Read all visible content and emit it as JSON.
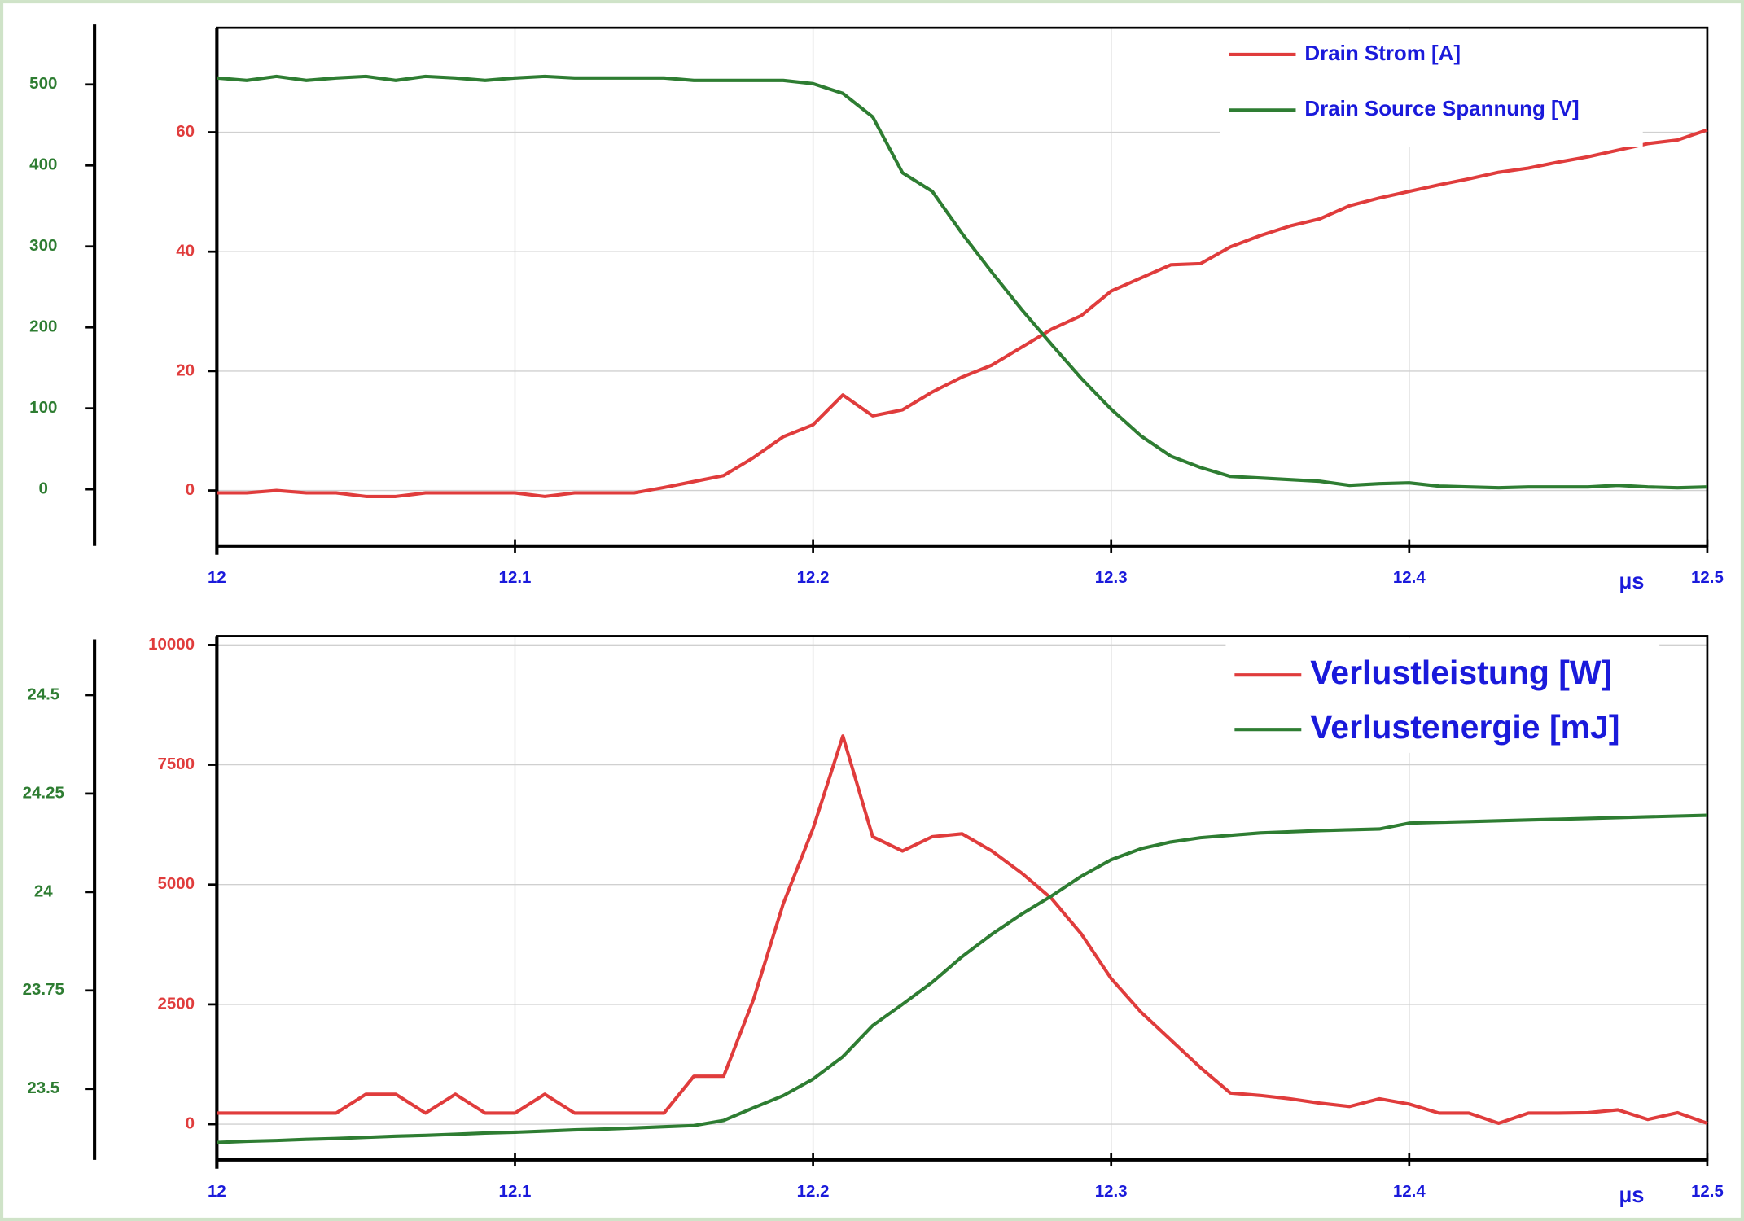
{
  "chart_data": [
    {
      "type": "line",
      "x": [
        12,
        12.01,
        12.02,
        12.03,
        12.04,
        12.05,
        12.06,
        12.07,
        12.08,
        12.09,
        12.1,
        12.11,
        12.12,
        12.13,
        12.14,
        12.15,
        12.16,
        12.17,
        12.18,
        12.19,
        12.2,
        12.21,
        12.22,
        12.23,
        12.24,
        12.25,
        12.26,
        12.27,
        12.28,
        12.29,
        12.3,
        12.31,
        12.32,
        12.33,
        12.34,
        12.35,
        12.36,
        12.37,
        12.38,
        12.39,
        12.4,
        12.41,
        12.42,
        12.43,
        12.44,
        12.45,
        12.46,
        12.47,
        12.48,
        12.49,
        12.5
      ],
      "xlim": [
        12,
        12.5
      ],
      "xticks": [
        12,
        12.1,
        12.2,
        12.3,
        12.4,
        12.5
      ],
      "x_label": "µs",
      "ylim": [
        -9.3,
        77.5
      ],
      "yticks": [
        0,
        20,
        40,
        60
      ],
      "y2lim": [
        -70,
        570
      ],
      "y2ticks": [
        0,
        100,
        200,
        300,
        400,
        500
      ],
      "grid": true,
      "legend": "upper right",
      "series": [
        {
          "name": "Drain Strom [A]",
          "color": "#e03c3c",
          "values": [
            -0.4,
            -0.4,
            0,
            -0.4,
            -0.4,
            -1,
            -1,
            -0.4,
            -0.4,
            -0.4,
            -0.4,
            -1,
            -0.4,
            -0.4,
            -0.4,
            0.5,
            1.5,
            2.5,
            5.5,
            9,
            11,
            16,
            12.5,
            13.5,
            16.5,
            19,
            21,
            24,
            27,
            29.3,
            33.4,
            35.6,
            37.8,
            38,
            40.8,
            42.7,
            44.3,
            45.5,
            47.7,
            49,
            50.1,
            51.2,
            52.2,
            53.3,
            54,
            55,
            55.9,
            57,
            58.1,
            58.7,
            60.4
          ]
        },
        {
          "name": "Drain Source Spannung [V]",
          "color": "#2e7d32",
          "axis": "y2",
          "values": [
            508,
            505,
            510,
            505,
            508,
            510,
            505,
            510,
            508,
            505,
            508,
            510,
            508,
            508,
            508,
            508,
            505,
            505,
            505,
            505,
            501,
            489,
            460,
            391,
            368,
            316,
            268,
            222,
            179,
            137,
            99,
            66,
            41,
            27,
            16,
            14,
            12,
            10,
            5,
            7,
            8,
            4,
            3,
            2,
            3,
            3,
            3,
            5,
            3,
            2,
            3
          ]
        }
      ]
    },
    {
      "type": "line",
      "x": [
        12,
        12.01,
        12.02,
        12.03,
        12.04,
        12.05,
        12.06,
        12.07,
        12.08,
        12.09,
        12.1,
        12.11,
        12.12,
        12.13,
        12.14,
        12.15,
        12.16,
        12.17,
        12.18,
        12.19,
        12.2,
        12.21,
        12.22,
        12.23,
        12.24,
        12.25,
        12.26,
        12.27,
        12.28,
        12.29,
        12.3,
        12.31,
        12.32,
        12.33,
        12.34,
        12.35,
        12.36,
        12.37,
        12.38,
        12.39,
        12.4,
        12.41,
        12.42,
        12.43,
        12.44,
        12.45,
        12.46,
        12.47,
        12.48,
        12.49,
        12.5
      ],
      "xlim": [
        12,
        12.5
      ],
      "xticks": [
        12,
        12.1,
        12.2,
        12.3,
        12.4,
        12.5
      ],
      "x_label": "µs",
      "ylim": [
        -743,
        10186
      ],
      "yticks": [
        0,
        2500,
        5000,
        7500,
        10000
      ],
      "y2lim": [
        23.32,
        24.65
      ],
      "y2ticks": [
        23.5,
        23.75,
        24,
        24.25,
        24.5
      ],
      "grid": true,
      "legend": "upper right",
      "series": [
        {
          "name": "Verlustleistung [W]",
          "color": "#e03c3c",
          "values": [
            232,
            232,
            232,
            232,
            232,
            626,
            626,
            232,
            626,
            232,
            232,
            626,
            232,
            232,
            232,
            232,
            1000,
            1000,
            2600,
            4600,
            6170,
            8100,
            6000,
            5700,
            6000,
            6060,
            5700,
            5240,
            4710,
            3970,
            3040,
            2340,
            1760,
            1180,
            650,
            600,
            530,
            440,
            370,
            530,
            420,
            232,
            232,
            20,
            232,
            232,
            240,
            300,
            100,
            240,
            20
          ]
        },
        {
          "name": "Verlustenergie [mJ]",
          "color": "#2e7d32",
          "axis": "y2",
          "values": [
            23.364,
            23.367,
            23.369,
            23.372,
            23.374,
            23.377,
            23.38,
            23.382,
            23.385,
            23.388,
            23.39,
            23.393,
            23.396,
            23.398,
            23.401,
            23.404,
            23.407,
            23.42,
            23.452,
            23.483,
            23.525,
            23.582,
            23.661,
            23.715,
            23.771,
            23.836,
            23.893,
            23.944,
            23.99,
            24.04,
            24.082,
            24.11,
            24.127,
            24.138,
            24.144,
            24.15,
            24.153,
            24.156,
            24.158,
            24.16,
            24.175,
            24.177,
            24.179,
            24.181,
            24.183,
            24.185,
            24.187,
            24.189,
            24.191,
            24.193,
            24.195
          ]
        }
      ]
    }
  ]
}
